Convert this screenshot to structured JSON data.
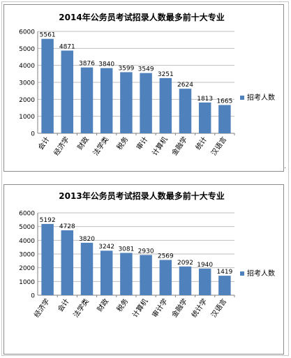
{
  "chart_data": [
    {
      "type": "bar",
      "title": "2014年公务员考试招录人数最多前十大专业",
      "categories": [
        "会计",
        "经济学",
        "财政",
        "法学类",
        "税务",
        "审计",
        "计算机",
        "金融学",
        "统计",
        "汉语言"
      ],
      "series": [
        {
          "name": "招考人数",
          "values": [
            5561,
            4871,
            3876,
            3840,
            3599,
            3549,
            3251,
            2624,
            1813,
            1665
          ]
        }
      ],
      "yticks": [
        "0",
        "1000",
        "2000",
        "3000",
        "4000",
        "5000",
        "6000"
      ],
      "ylim": [
        0,
        6000
      ],
      "grid": true,
      "legend_position": "right",
      "bar_color": "#4f81bd"
    },
    {
      "type": "bar",
      "title": "2013年公务员考试招录人数最多前十大专业",
      "categories": [
        "经济学",
        "会计",
        "法学类",
        "财政",
        "税务",
        "计算机",
        "审计学",
        "金融学",
        "统计学",
        "汉语言"
      ],
      "series": [
        {
          "name": "招考人数",
          "values": [
            5192,
            4728,
            3820,
            3242,
            3081,
            2930,
            2569,
            2092,
            1940,
            1419
          ]
        }
      ],
      "yticks": [
        "0",
        "1000",
        "2000",
        "3000",
        "4000",
        "5000",
        "6000"
      ],
      "ylim": [
        0,
        6000
      ],
      "grid": true,
      "legend_position": "right",
      "bar_color": "#4f81bd"
    }
  ]
}
